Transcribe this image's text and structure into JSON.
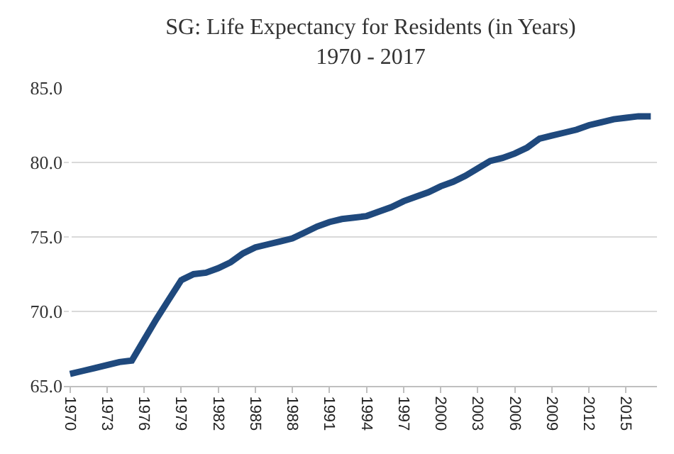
{
  "chart_data": {
    "type": "line",
    "title": "SG: Life Expectancy for Residents (in Years)",
    "subtitle": "1970 - 2017",
    "categories": [
      "1970",
      null,
      null,
      "1973",
      null,
      null,
      "1976",
      null,
      null,
      "1979",
      null,
      null,
      "1982",
      null,
      null,
      "1985",
      null,
      null,
      "1988",
      null,
      null,
      "1991",
      null,
      null,
      "1994",
      null,
      null,
      "1997",
      null,
      null,
      "2000",
      null,
      null,
      "2003",
      null,
      null,
      "2006",
      null,
      null,
      "2009",
      null,
      null,
      "2012",
      null,
      null,
      "2015",
      null,
      null
    ],
    "series": [
      {
        "color": "#1f497d",
        "values": [
          65.8,
          66.0,
          66.2,
          66.4,
          66.6,
          66.7,
          68.1,
          69.5,
          70.8,
          72.1,
          72.5,
          72.6,
          72.9,
          73.3,
          73.9,
          74.3,
          74.5,
          74.7,
          74.9,
          75.3,
          75.7,
          76.0,
          76.2,
          76.3,
          76.4,
          76.7,
          77.0,
          77.4,
          77.7,
          78.0,
          78.4,
          78.7,
          79.1,
          79.6,
          80.1,
          80.3,
          80.6,
          81.0,
          81.6,
          81.8,
          82.0,
          82.2,
          82.5,
          82.7,
          82.9,
          83.0,
          83.1,
          83.1
        ]
      }
    ],
    "ylim": [
      65,
      85
    ],
    "yticks": [
      {
        "value": 65,
        "label": "65.0"
      },
      {
        "value": 70,
        "label": "70.0"
      },
      {
        "value": 75,
        "label": "75.0"
      },
      {
        "value": 80,
        "label": "80.0"
      },
      {
        "value": 85,
        "label": "85.0"
      }
    ],
    "grid": "y",
    "legend": false,
    "marker": "none",
    "line_style": "solid"
  }
}
